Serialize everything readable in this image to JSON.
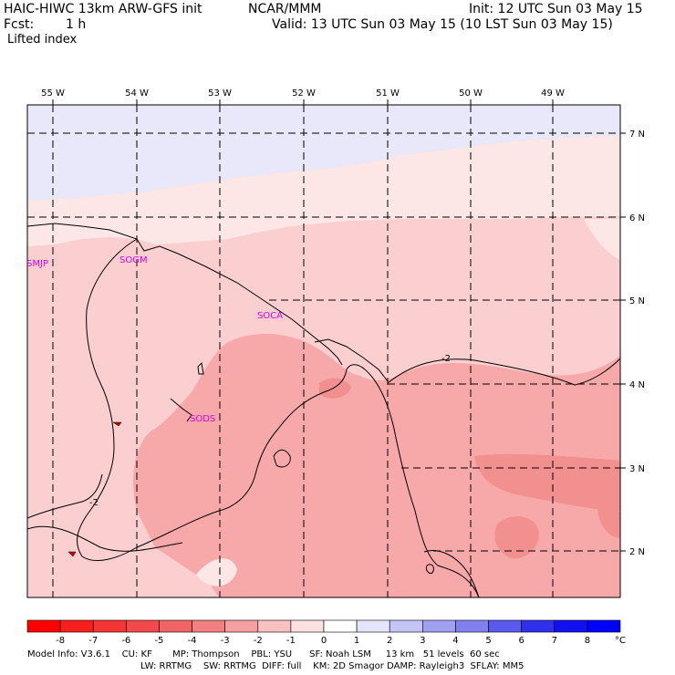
{
  "header": {
    "model": "HAIC-HIWC 13km ARW-GFS init",
    "org": "NCAR/MMM",
    "init": "Init: 12 UTC Sun 03 May 15",
    "fcst_label": "Fcst:",
    "fcst_value": "1 h",
    "valid": "Valid: 13 UTC Sun 03 May 15 (10 LST Sun 03 May 15)",
    "field": "Lifted index"
  },
  "map": {
    "lon_labels": [
      "55 W",
      "54 W",
      "53 W",
      "52 W",
      "51 W",
      "50 W",
      "49 W"
    ],
    "lat_labels": [
      "7 N",
      "6 N",
      "5 N",
      "4 N",
      "3 N",
      "2 N"
    ],
    "stations": [
      "SMJP",
      "SOGM",
      "SOCA",
      "SODS"
    ],
    "contour_labels": [
      "-2",
      "-2"
    ],
    "palette": {
      "pale_blue": "#e8e8fa",
      "very_light_pink": "#fde6e6",
      "light_pink": "#fbcfcf",
      "mid_pink": "#f7a8a8",
      "deep_pink": "#f29090"
    }
  },
  "colorbar": {
    "ticks": [
      "-8",
      "-7",
      "-6",
      "-5",
      "-4",
      "-3",
      "-2",
      "-1",
      "0",
      "1",
      "2",
      "3",
      "4",
      "5",
      "6",
      "7",
      "8"
    ],
    "unit": "°C",
    "colors": [
      "#ff0000",
      "#f71e1e",
      "#f53434",
      "#f24a4a",
      "#f06464",
      "#f28080",
      "#f5a0a0",
      "#f8c0c0",
      "#fde0e0",
      "#ffffff",
      "#e4e4fa",
      "#c4c4f6",
      "#a0a0f2",
      "#8080ee",
      "#5a5aec",
      "#3030ec",
      "#1010f0",
      "#0000ff"
    ]
  },
  "footer": {
    "line1": "Model Info: V3.6.1    CU: KF       MP: Thompson    PBL: YSU      SF: Noah LSM     13 km   51 levels  60 sec",
    "line2": "LW: RRTMG    SW: RRTMG  DIFF: full    KM: 2D Smagor DAMP: Rayleigh3  SFLAY: MM5"
  }
}
